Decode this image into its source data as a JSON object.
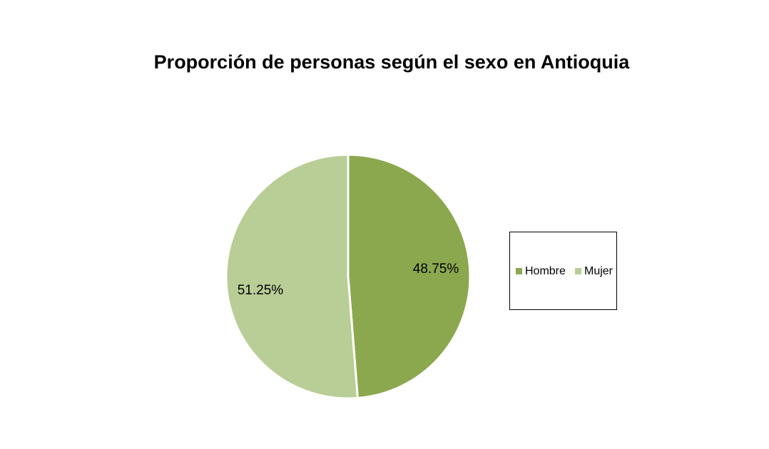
{
  "chart_data": {
    "type": "pie",
    "title": "Proporción de personas según el sexo en Antioquia",
    "categories": [
      "Hombre",
      "Mujer"
    ],
    "values": [
      48.75,
      51.25
    ],
    "value_labels": [
      "48.75%",
      "51.25%"
    ],
    "colors": [
      "#8ba84e",
      "#b9cd96"
    ],
    "legend": "right"
  }
}
